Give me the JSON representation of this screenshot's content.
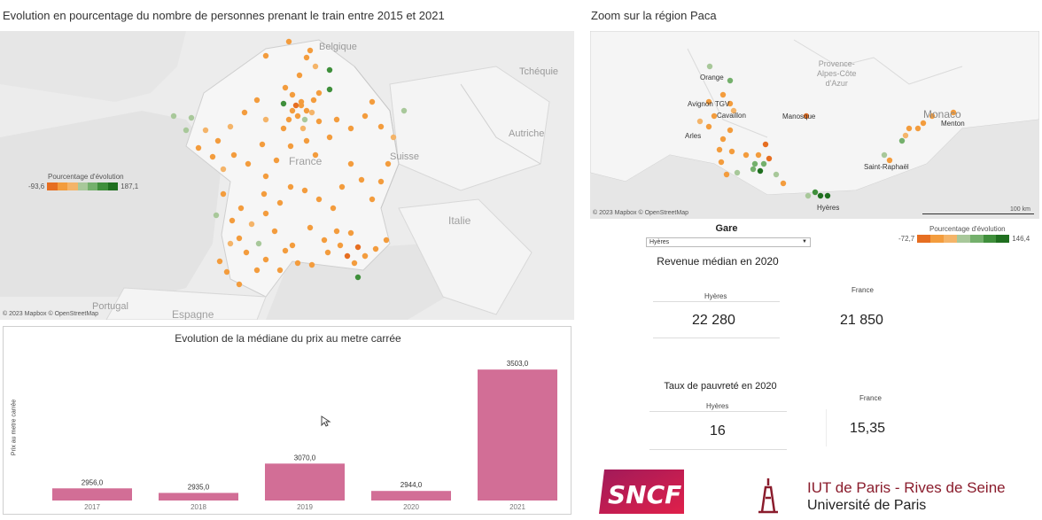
{
  "left_map": {
    "title": "Evolution en pourcentage du nombre de personnes prenant le train entre 2015 et 2021",
    "labels": {
      "belgique": "Belgique",
      "tcheque": "Tchéquie",
      "france": "France",
      "suisse": "Suisse",
      "autriche": "Autriche",
      "italie": "Italie",
      "espagne": "Espagne",
      "portugal": "Portugal"
    },
    "attribution": "© 2023 Mapbox © OpenStreetMap",
    "legend": {
      "title": "Pourcentage d'évolution",
      "min": "-93,6",
      "max": "187,1"
    }
  },
  "right_map": {
    "title": "Zoom sur la région Paca",
    "labels": {
      "region": "Provence-\nAlpes-Côte\nd'Azur",
      "orange": "Orange",
      "avignon": "Avignon TGV",
      "cavaillon": "Cavaillon",
      "manosque": "Manosque",
      "arles": "Arles",
      "monaco": "Monaco",
      "menton": "Menton",
      "saint_raphael": "Saint-Raphaël",
      "hyeres": "Hyères"
    },
    "attribution": "© 2023 Mapbox © OpenStreetMap",
    "scale": "100 km",
    "legend": {
      "title": "Pourcentage d'évolution",
      "min": "-72,7",
      "max": "146,4"
    }
  },
  "filter": {
    "label": "Gare",
    "value": "Hyères"
  },
  "kpi": {
    "revenue_title": "Revenue médian en 2020",
    "revenue_station_label": "Hyères",
    "revenue_station_value": "22 280",
    "revenue_france_label": "France",
    "revenue_france_value": "21 850",
    "poverty_title": "Taux de pauvreté en 2020",
    "poverty_station_label": "Hyères",
    "poverty_station_value": "16",
    "poverty_france_label": "France",
    "poverty_france_value": "15,35"
  },
  "logos": {
    "sncf": "SNCF",
    "iut_line1": "IUT de Paris - Rives de Seine",
    "iut_line2": "Université de Paris"
  },
  "colors": {
    "bar": "#d26e96",
    "legend": [
      "#e66e21",
      "#f39c3d",
      "#f4b469",
      "#a8c89a",
      "#74b06c",
      "#3f8f3b",
      "#1f6f1f"
    ]
  },
  "chart_data": {
    "type": "bar",
    "title": "Evolution de la médiane du prix au metre carrée",
    "ylabel": "Prix au metre carrée",
    "categories": [
      "2017",
      "2018",
      "2019",
      "2020",
      "2021"
    ],
    "values": [
      2956.0,
      2935.0,
      3070.0,
      2944.0,
      3503.0
    ],
    "value_labels": [
      "2956,0",
      "2935,0",
      "3070,0",
      "2944,0",
      "3503,0"
    ],
    "ylim": [
      2900,
      3520
    ],
    "grid": false
  }
}
